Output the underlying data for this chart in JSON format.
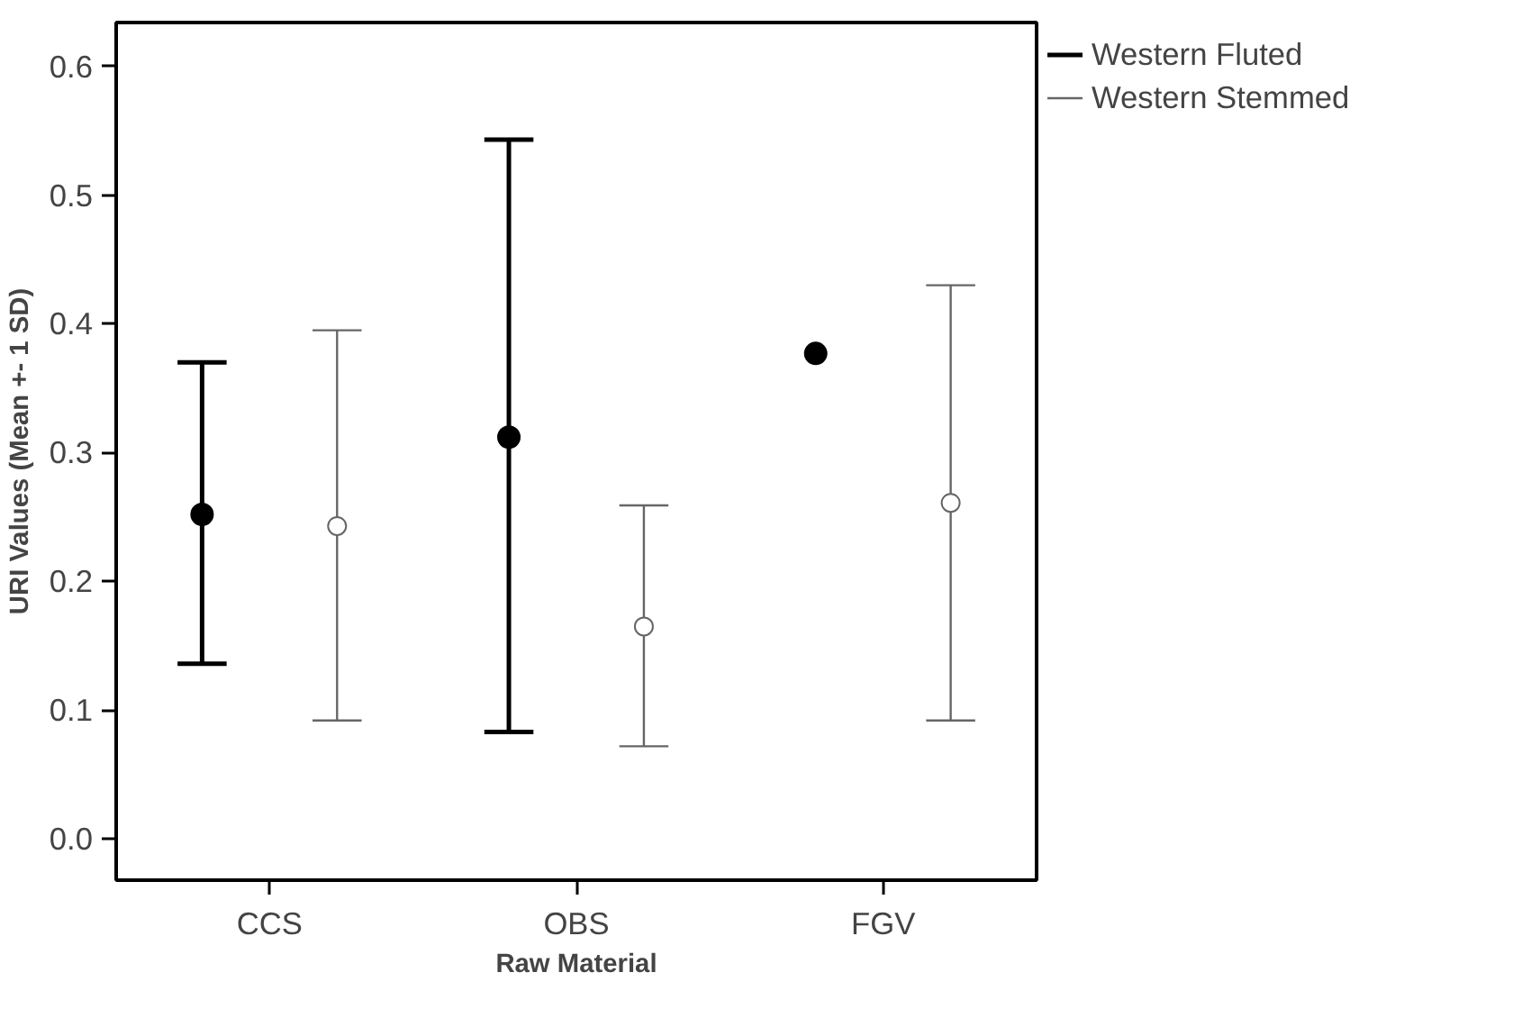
{
  "chart_data": {
    "type": "scatter",
    "xlabel": "Raw Material",
    "ylabel": "URI Values (Mean +- 1 SD)",
    "categories": [
      "CCS",
      "OBS",
      "FGV"
    ],
    "series": [
      {
        "name": "Western Fluted",
        "color": "#000000",
        "values": [
          0.252,
          0.312,
          0.377
        ],
        "errors": [
          [
            0.136,
            0.37
          ],
          [
            0.083,
            0.543
          ],
          null
        ]
      },
      {
        "name": "Western Stemmed",
        "color": "#666666",
        "values": [
          0.243,
          0.165,
          0.261
        ],
        "errors": [
          [
            0.092,
            0.395
          ],
          [
            0.072,
            0.259
          ],
          [
            0.092,
            0.43
          ]
        ]
      }
    ],
    "ylim": [
      -0.032,
      0.634
    ],
    "yticks": [
      {
        "value": 0,
        "label": "0.0"
      },
      0.1,
      0.2,
      0.3,
      0.4,
      0.5,
      0.6
    ],
    "grid": false,
    "legend": "top right",
    "marker": "circle"
  }
}
